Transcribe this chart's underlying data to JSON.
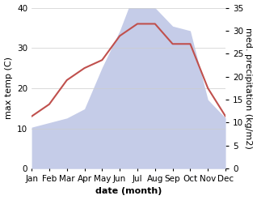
{
  "months": [
    "Jan",
    "Feb",
    "Mar",
    "Apr",
    "May",
    "Jun",
    "Jul",
    "Aug",
    "Sep",
    "Oct",
    "Nov",
    "Dec"
  ],
  "temperature": [
    13,
    16,
    22,
    25,
    27,
    33,
    36,
    36,
    31,
    31,
    20,
    13
  ],
  "precipitation": [
    9,
    10,
    11,
    13,
    22,
    30,
    40,
    35,
    31,
    30,
    15,
    11
  ],
  "temp_color": "#c0504d",
  "precip_fill_color": "#c5cce8",
  "ylabel_left": "max temp (C)",
  "ylabel_right": "med. precipitation (kg/m2)",
  "xlabel": "date (month)",
  "ylim_left": [
    0,
    40
  ],
  "ylim_right": [
    0,
    35
  ],
  "bg_color": "#ffffff",
  "grid_color": "#cccccc",
  "label_fontsize": 8,
  "tick_fontsize": 7.5
}
